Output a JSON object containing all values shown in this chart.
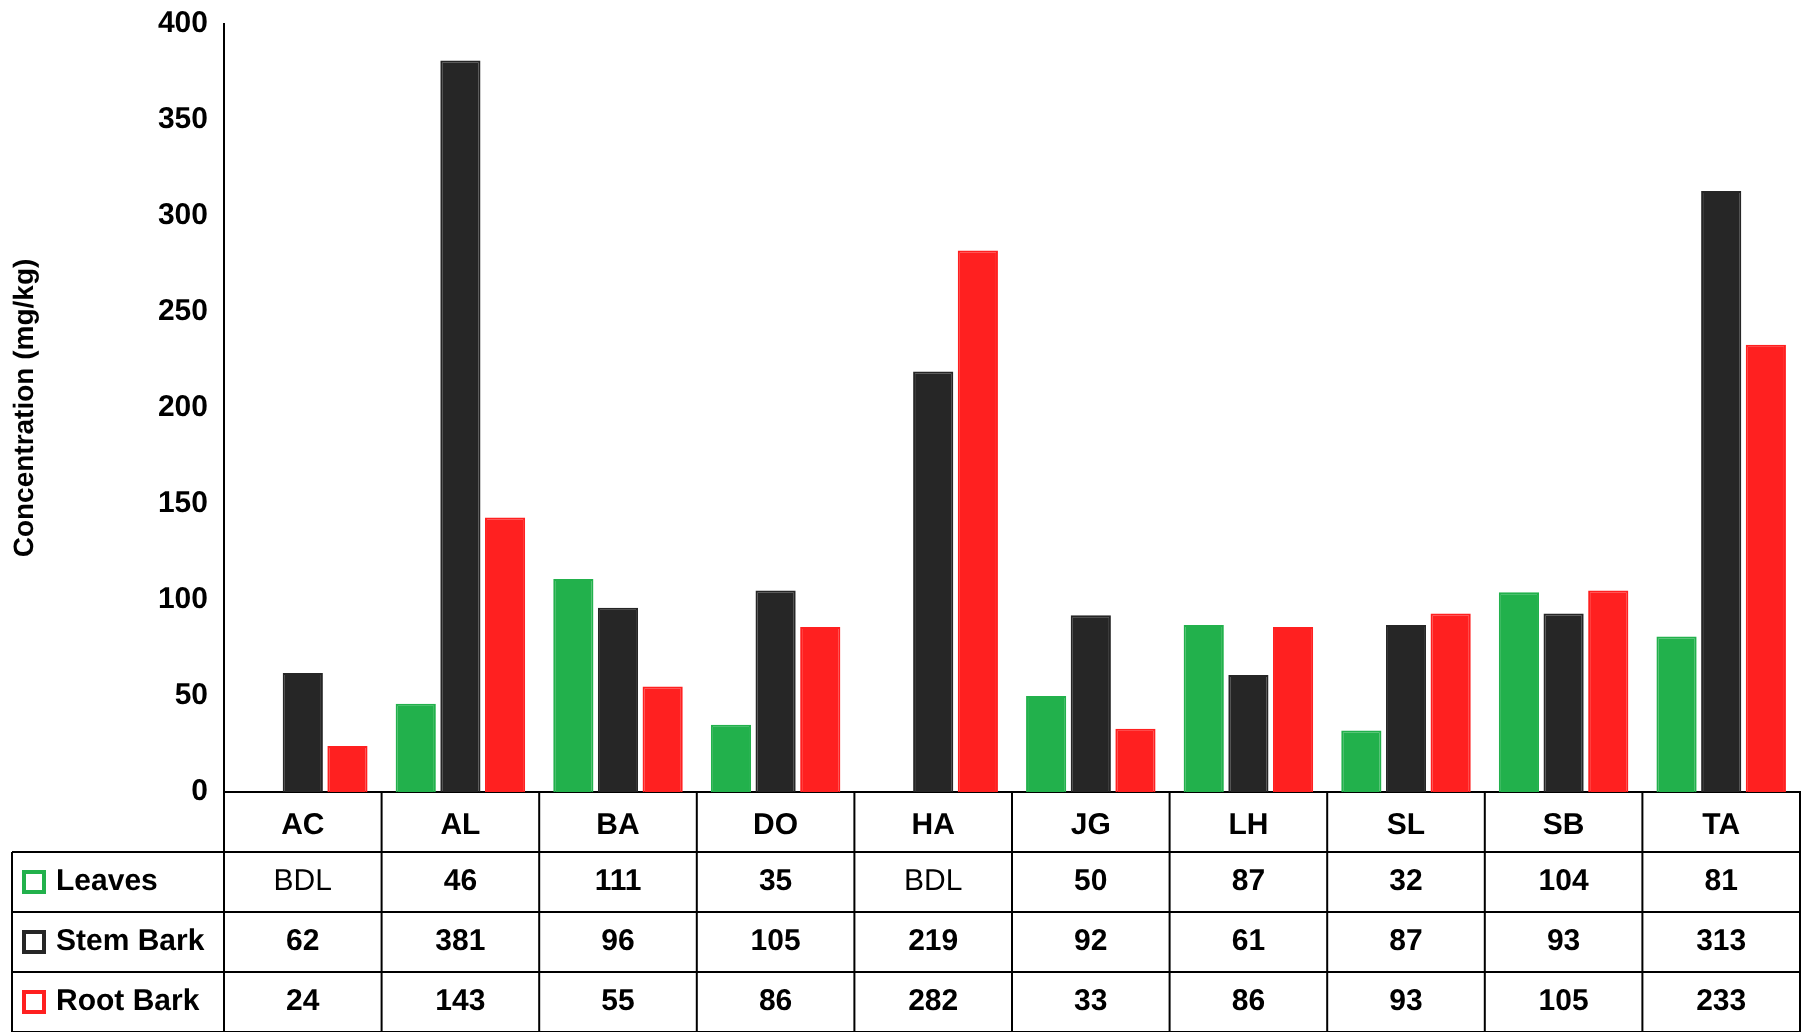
{
  "chart_data": {
    "type": "bar",
    "ylabel": "Concentration (mg/kg)",
    "categories": [
      "AC",
      "AL",
      "BA",
      "DO",
      "HA",
      "JG",
      "LH",
      "SL",
      "SB",
      "TA"
    ],
    "series": [
      {
        "name": "Leaves",
        "color": "#22b14c",
        "values": [
          null,
          46,
          111,
          35,
          null,
          50,
          87,
          32,
          104,
          81
        ],
        "value_labels": [
          "BDL",
          "46",
          "111",
          "35",
          "BDL",
          "50",
          "87",
          "32",
          "104",
          "81"
        ]
      },
      {
        "name": "Stem Bark",
        "color": "#262626",
        "values": [
          62,
          381,
          96,
          105,
          219,
          92,
          61,
          87,
          93,
          313
        ],
        "value_labels": [
          "62",
          "381",
          "96",
          "105",
          "219",
          "92",
          "61",
          "87",
          "93",
          "313"
        ]
      },
      {
        "name": "Root Bark",
        "color": "#ff2020",
        "values": [
          24,
          143,
          55,
          86,
          282,
          33,
          86,
          93,
          105,
          233
        ],
        "value_labels": [
          "24",
          "143",
          "55",
          "86",
          "282",
          "33",
          "86",
          "93",
          "105",
          "233"
        ]
      }
    ],
    "ylim": [
      0,
      400
    ],
    "yticks": [
      0,
      50,
      100,
      150,
      200,
      250,
      300,
      350,
      400
    ],
    "grid": false,
    "legend": "bottom"
  }
}
